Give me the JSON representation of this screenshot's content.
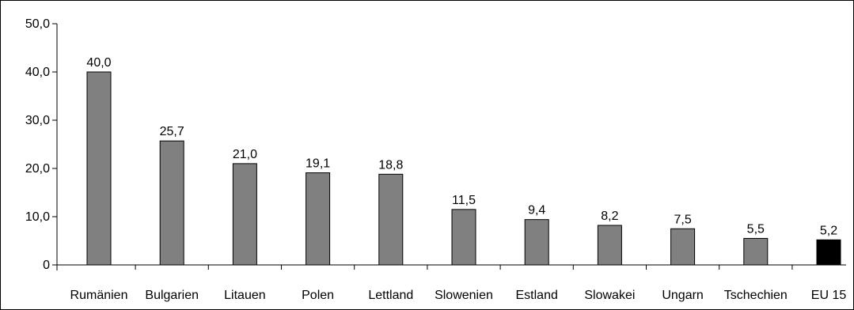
{
  "chart_data": {
    "type": "bar",
    "title": "",
    "xlabel": "",
    "ylabel": "",
    "ylim": [
      0,
      50
    ],
    "yticks": [
      "0",
      "10,0",
      "20,0",
      "30,0",
      "40,0",
      "50,0"
    ],
    "ytick_values": [
      0,
      10,
      20,
      30,
      40,
      50
    ],
    "grid": false,
    "categories": [
      "Rumänien",
      "Bulgarien",
      "Litauen",
      "Polen",
      "Lettland",
      "Slowenien",
      "Estland",
      "Slowakei",
      "Ungarn",
      "Tschechien",
      "EU 15"
    ],
    "values": [
      40.0,
      25.7,
      21.0,
      19.1,
      18.8,
      11.5,
      9.4,
      8.2,
      7.5,
      5.5,
      5.2
    ],
    "value_labels": [
      "40,0",
      "25,7",
      "21,0",
      "19,1",
      "18,8",
      "11,5",
      "9,4",
      "8,2",
      "7,5",
      "5,5",
      "5,2"
    ],
    "colors": {
      "default": "#808080",
      "highlight": "#000000",
      "highlight_category": "EU 15"
    }
  }
}
